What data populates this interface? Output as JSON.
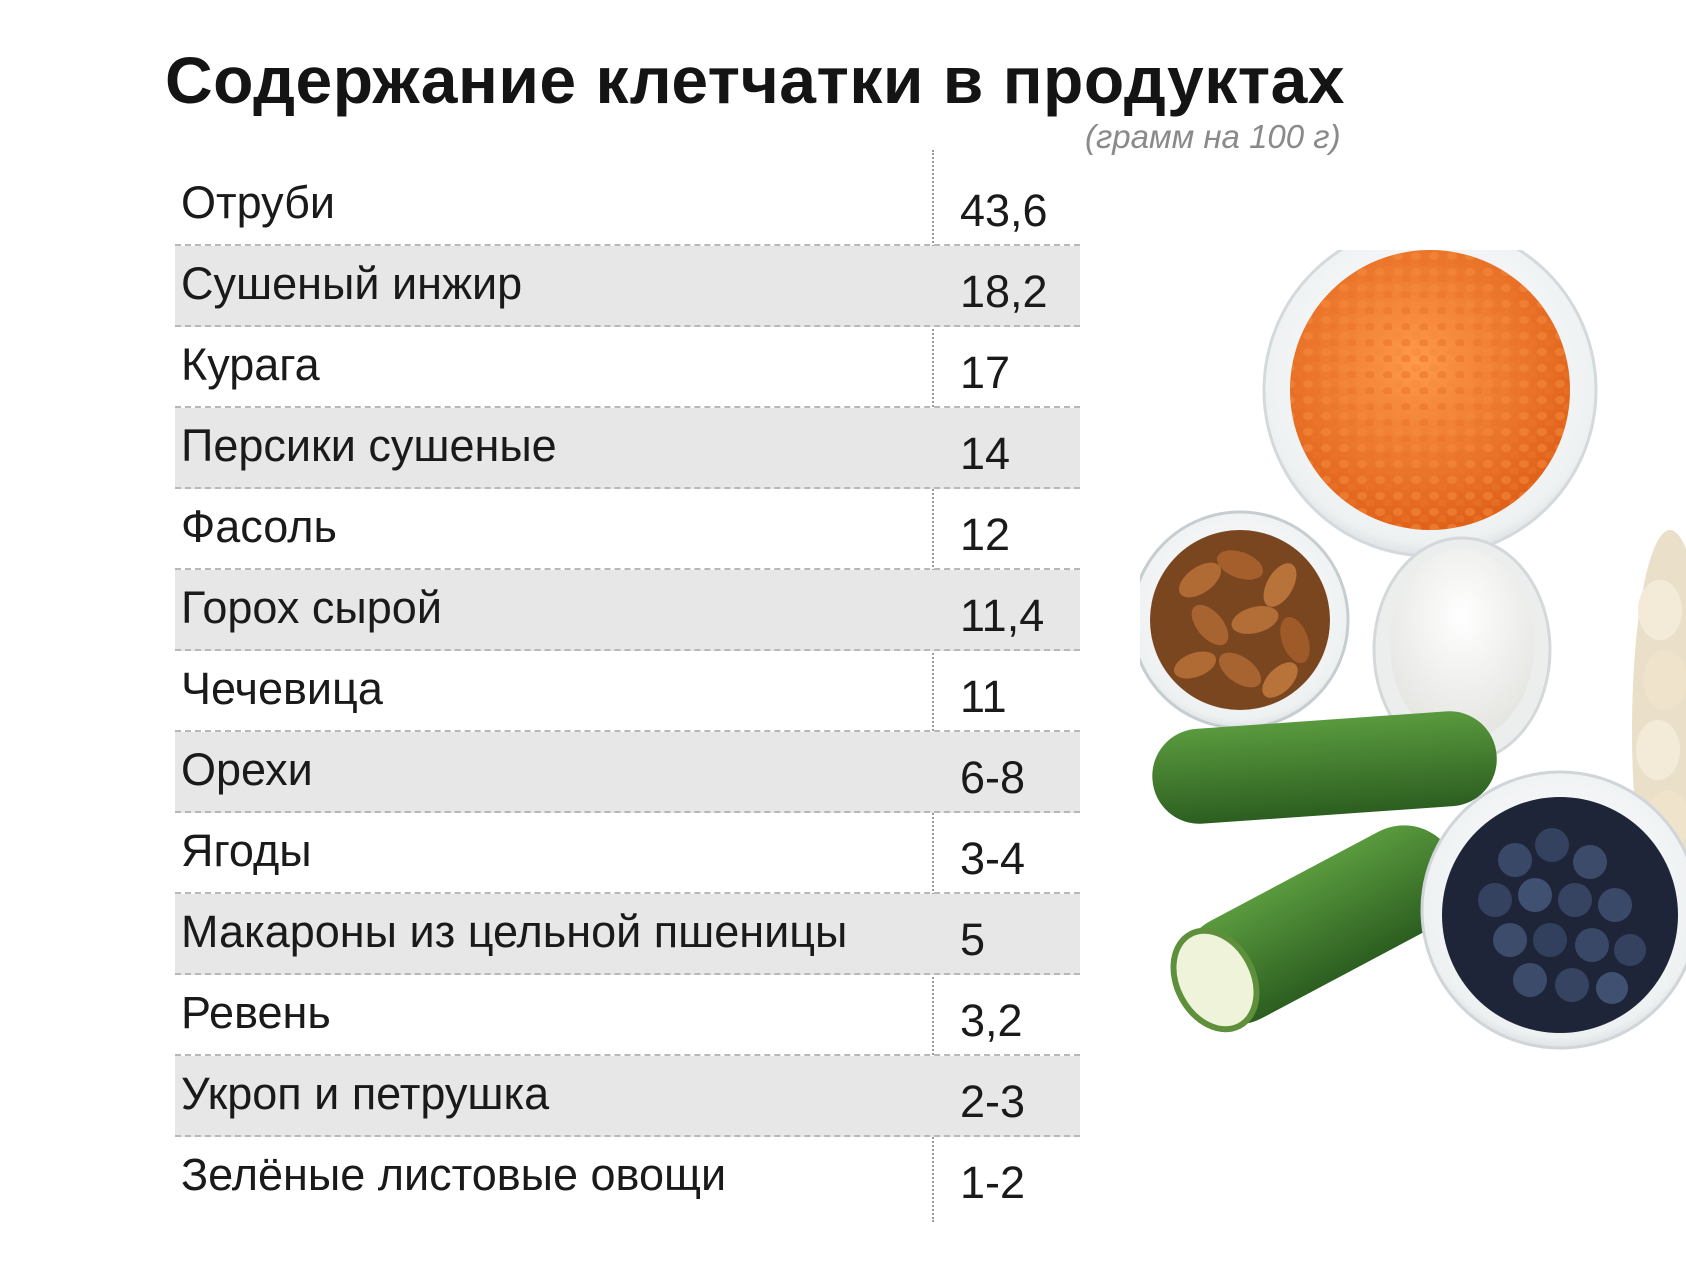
{
  "title": "Содержание клетчатки в продуктах",
  "subtitle": "(грамм на 100 г)",
  "rows": [
    {
      "name": "Отруби",
      "value": "43,6"
    },
    {
      "name": "Сушеный инжир",
      "value": "18,2"
    },
    {
      "name": "Курага",
      "value": "17"
    },
    {
      "name": "Персики сушеные",
      "value": "14"
    },
    {
      "name": "Фасоль",
      "value": "12"
    },
    {
      "name": "Горох сырой",
      "value": "11,4"
    },
    {
      "name": "Чечевица",
      "value": "11"
    },
    {
      "name": "Орехи",
      "value": "6-8"
    },
    {
      "name": "Ягоды",
      "value": "3-4"
    },
    {
      "name": "Макароны из цельной пшеницы",
      "value": "5"
    },
    {
      "name": "Ревень",
      "value": "3,2"
    },
    {
      "name": "Укроп и петрушка",
      "value": "2-3"
    },
    {
      "name": "Зелёные листовые овощи",
      "value": "1-2"
    }
  ],
  "colors": {
    "row_shade": "#e7e7e7",
    "lentils": "#f07a2a",
    "almonds": "#a8642e",
    "cucumber": "#3f7a2c",
    "blueberries": "#2b3550",
    "milk": "#f4f4f2"
  }
}
